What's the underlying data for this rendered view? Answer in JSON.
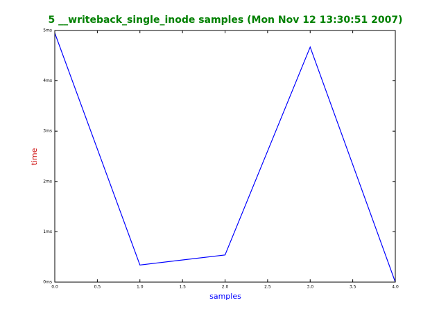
{
  "chart_data": {
    "type": "line",
    "title": "5 __writeback_single_inode samples (Mon Nov 12 13:30:51 2007)",
    "x_label": "samples",
    "y_label": "time",
    "x": [
      0,
      1,
      2,
      3,
      4
    ],
    "series": [
      {
        "name": "time",
        "color": "#0000ff",
        "values": [
          4.95,
          0.34,
          0.54,
          4.67,
          0
        ]
      }
    ],
    "xlim": [
      0,
      4
    ],
    "xticks": [
      {
        "value": 0,
        "label": "0.0"
      },
      0.5,
      {
        "value": 1,
        "label": "1.0"
      },
      1.5,
      {
        "value": 2,
        "label": "2.0"
      },
      2.5,
      {
        "value": 3,
        "label": "3.0"
      },
      3.5,
      {
        "value": 4,
        "label": "4.0"
      }
    ],
    "ylim": [
      0,
      5
    ],
    "yticks": [
      {
        "value": 0,
        "label": "0ms"
      },
      {
        "value": 1,
        "label": "1ms"
      },
      {
        "value": 2,
        "label": "2ms"
      },
      {
        "value": 3,
        "label": "3ms"
      },
      {
        "value": 4,
        "label": "4ms"
      },
      {
        "value": 5,
        "label": "5ms"
      }
    ]
  }
}
